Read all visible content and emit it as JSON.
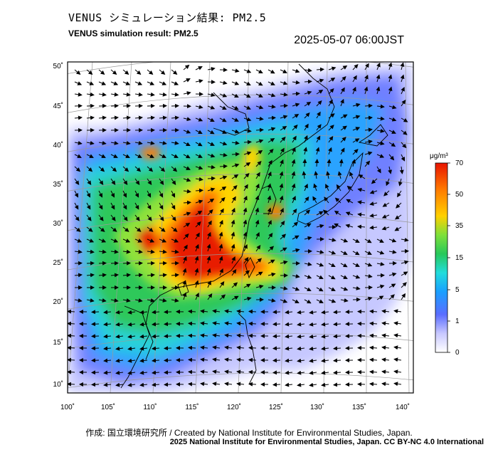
{
  "title_jp": "VENUS シミュレーション結果: PM2.5",
  "title_en": "VENUS simulation result: PM2.5",
  "datetime": "2025-05-07 06:00JST",
  "axes": {
    "lon_ticks": [
      "100˚",
      "105˚",
      "110˚",
      "115˚",
      "120˚",
      "125˚",
      "130˚",
      "135˚",
      "140˚"
    ],
    "lat_ticks": [
      "50˚",
      "45˚",
      "40˚",
      "35˚",
      "30˚",
      "25˚",
      "20˚",
      "15˚",
      "10˚"
    ],
    "lon_range": [
      100,
      141
    ],
    "lat_range": [
      9,
      50
    ]
  },
  "colorbar": {
    "unit": "μg/m³",
    "ticks": [
      "70",
      "50",
      "35",
      "15",
      "5",
      "1",
      "0"
    ],
    "colors": [
      "#ffffff",
      "#c8c8ff",
      "#5a6dff",
      "#1a9fff",
      "#22dcdc",
      "#27c85a",
      "#7ee03a",
      "#ffd000",
      "#ff7a00",
      "#e81400"
    ]
  },
  "credit_line1": "作成: 国立環境研究所 / Created by National Institute for Environmental Studies, Japan.",
  "credit_line2": "2025 National Institute for Environmental Studies, Japan. CC BY-NC 4.0 International"
}
